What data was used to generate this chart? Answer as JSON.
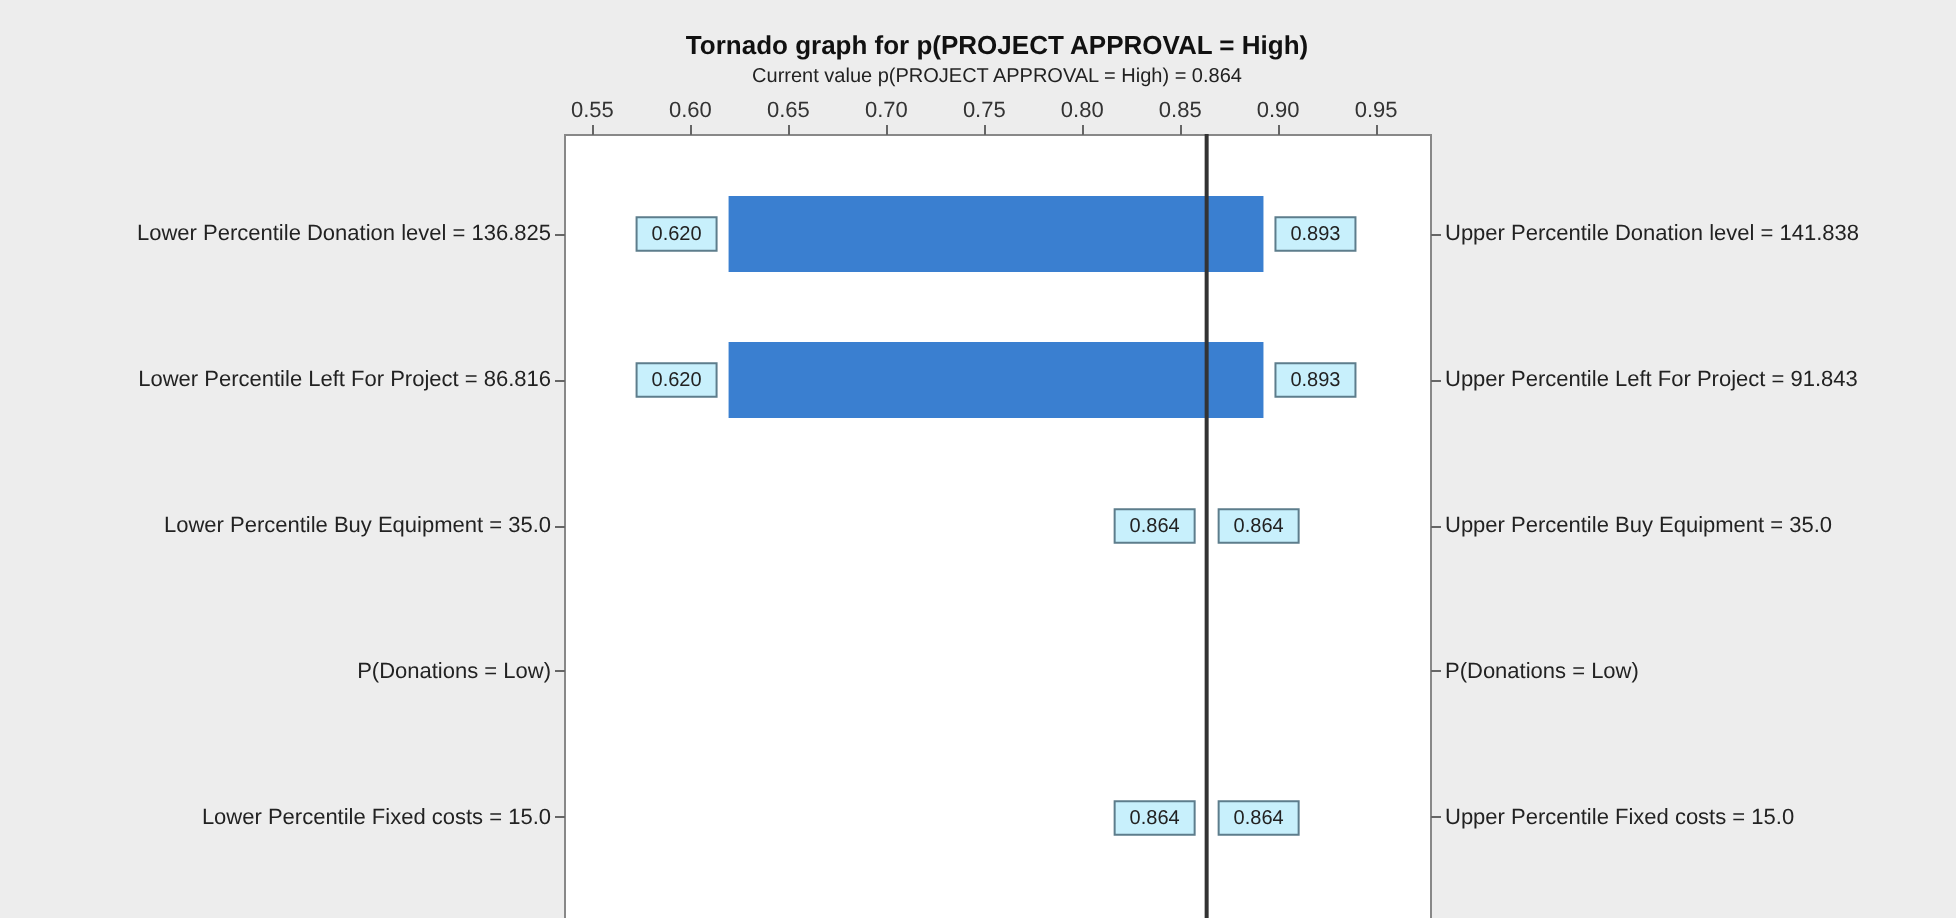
{
  "chart_data": {
    "type": "bar",
    "orientation": "horizontal",
    "title": "Tornado graph for p(PROJECT APPROVAL = High)",
    "subtitle": "Current value p(PROJECT APPROVAL = High) = 0.864",
    "categories": [
      "Lower Percentile Donation level = 136.825",
      "Lower Percentile Left For Project = 86.816",
      "Lower Percentile Buy Equipment = 35.0",
      "P(Donations = Low)",
      "Lower Percentile Fixed costs = 15.0"
    ],
    "y2_categories": [
      "Upper Percentile Donation level = 141.838",
      "Upper Percentile Left For Project = 91.843",
      "Upper Percentile Buy Equipment = 35.0",
      "P(Donations = Low)",
      "Upper Percentile Fixed costs = 15.0"
    ],
    "base": [
      0.62,
      0.62,
      null,
      null,
      null
    ],
    "values": [
      0.273,
      0.273,
      null,
      null,
      null
    ],
    "color": "#3a7fd0",
    "xlim": [
      0.536,
      0.978
    ],
    "xticks": [
      0.55,
      {
        "value": 0.6,
        "label": "0.60"
      },
      0.65,
      {
        "value": 0.7,
        "label": "0.70"
      },
      0.75,
      {
        "value": 0.8,
        "label": "0.80"
      },
      0.85,
      {
        "value": 0.9,
        "label": "0.90"
      },
      0.95
    ],
    "ref_lines": [
      {
        "axis": "x",
        "value": 0.864,
        "color": "#333333"
      }
    ],
    "annotations": [
      {
        "text": "0.620",
        "x": 0.62,
        "y": "Lower Percentile Donation level = 136.825"
      },
      {
        "text": "0.893",
        "x": 0.893,
        "y": "Lower Percentile Donation level = 136.825"
      },
      {
        "text": "0.620",
        "x": 0.62,
        "y": "Lower Percentile Left For Project = 86.816"
      },
      {
        "text": "0.893",
        "x": 0.893,
        "y": "Lower Percentile Left For Project = 86.816"
      },
      {
        "text": "0.864",
        "x": 0.864,
        "y": "Lower Percentile Buy Equipment = 35.0"
      },
      {
        "text": "0.864",
        "x": 0.864,
        "y": "Lower Percentile Buy Equipment = 35.0"
      },
      {
        "text": "0.864",
        "x": 0.864,
        "y": "Lower Percentile Fixed costs = 15.0"
      },
      {
        "text": "0.864",
        "x": 0.864,
        "y": "Lower Percentile Fixed costs = 15.0"
      }
    ],
    "grid": false
  }
}
